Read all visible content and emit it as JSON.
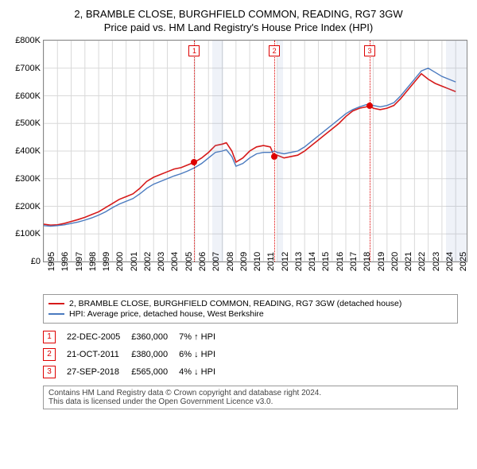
{
  "titles": {
    "line1": "2, BRAMBLE CLOSE, BURGHFIELD COMMON, READING, RG7 3GW",
    "line2": "Price paid vs. HM Land Registry's House Price Index (HPI)"
  },
  "chart": {
    "type": "line",
    "background_color": "#ffffff",
    "grid_color": "#d9d9d9",
    "border_color": "#888888",
    "xlim": [
      1995,
      2025.8
    ],
    "ylim": [
      0,
      800000
    ],
    "yticks": [
      0,
      100000,
      200000,
      300000,
      400000,
      500000,
      600000,
      700000,
      800000
    ],
    "ytick_labels": [
      "£0",
      "£100K",
      "£200K",
      "£300K",
      "£400K",
      "£500K",
      "£600K",
      "£700K",
      "£800K"
    ],
    "xticks": [
      1995,
      1996,
      1997,
      1998,
      1999,
      2000,
      2001,
      2002,
      2003,
      2004,
      2005,
      2006,
      2007,
      2008,
      2009,
      2010,
      2011,
      2012,
      2013,
      2014,
      2015,
      2016,
      2017,
      2018,
      2019,
      2020,
      2021,
      2022,
      2023,
      2024,
      2025
    ],
    "shaded_future": {
      "from_x": 2024.3,
      "color": "rgba(120,150,200,0.12)"
    },
    "shaded_bands": [
      {
        "from_x": 2007.3,
        "to_x": 2008.1,
        "color": "rgba(120,150,200,0.12)"
      },
      {
        "from_x": 2012.0,
        "to_x": 2012.4,
        "color": "rgba(120,150,200,0.12)"
      }
    ],
    "series": [
      {
        "name": "property",
        "label": "2, BRAMBLE CLOSE, BURGHFIELD COMMON, READING, RG7 3GW (detached house)",
        "color": "#d61a1a",
        "line_width": 1.6,
        "data": [
          [
            1995.0,
            135000
          ],
          [
            1995.5,
            132000
          ],
          [
            1996.0,
            133000
          ],
          [
            1996.5,
            138000
          ],
          [
            1997.0,
            145000
          ],
          [
            1997.5,
            152000
          ],
          [
            1998.0,
            160000
          ],
          [
            1998.5,
            170000
          ],
          [
            1999.0,
            180000
          ],
          [
            1999.5,
            195000
          ],
          [
            2000.0,
            210000
          ],
          [
            2000.5,
            225000
          ],
          [
            2001.0,
            235000
          ],
          [
            2001.5,
            245000
          ],
          [
            2002.0,
            265000
          ],
          [
            2002.5,
            290000
          ],
          [
            2003.0,
            305000
          ],
          [
            2003.5,
            315000
          ],
          [
            2004.0,
            325000
          ],
          [
            2004.5,
            335000
          ],
          [
            2005.0,
            340000
          ],
          [
            2005.5,
            350000
          ],
          [
            2006.0,
            360000
          ],
          [
            2006.5,
            375000
          ],
          [
            2007.0,
            395000
          ],
          [
            2007.5,
            420000
          ],
          [
            2008.0,
            425000
          ],
          [
            2008.3,
            430000
          ],
          [
            2008.7,
            400000
          ],
          [
            2009.0,
            360000
          ],
          [
            2009.5,
            375000
          ],
          [
            2010.0,
            400000
          ],
          [
            2010.5,
            415000
          ],
          [
            2011.0,
            420000
          ],
          [
            2011.5,
            415000
          ],
          [
            2011.8,
            380000
          ],
          [
            2012.0,
            385000
          ],
          [
            2012.5,
            375000
          ],
          [
            2013.0,
            380000
          ],
          [
            2013.5,
            385000
          ],
          [
            2014.0,
            400000
          ],
          [
            2014.5,
            420000
          ],
          [
            2015.0,
            440000
          ],
          [
            2015.5,
            460000
          ],
          [
            2016.0,
            480000
          ],
          [
            2016.5,
            500000
          ],
          [
            2017.0,
            525000
          ],
          [
            2017.5,
            545000
          ],
          [
            2018.0,
            555000
          ],
          [
            2018.5,
            560000
          ],
          [
            2018.7,
            565000
          ],
          [
            2019.0,
            555000
          ],
          [
            2019.5,
            550000
          ],
          [
            2020.0,
            555000
          ],
          [
            2020.5,
            565000
          ],
          [
            2021.0,
            590000
          ],
          [
            2021.5,
            620000
          ],
          [
            2022.0,
            650000
          ],
          [
            2022.5,
            680000
          ],
          [
            2023.0,
            660000
          ],
          [
            2023.5,
            645000
          ],
          [
            2024.0,
            635000
          ],
          [
            2024.5,
            625000
          ],
          [
            2025.0,
            615000
          ]
        ]
      },
      {
        "name": "hpi",
        "label": "HPI: Average price, detached house, West Berkshire",
        "color": "#4a7abf",
        "line_width": 1.4,
        "data": [
          [
            1995.0,
            130000
          ],
          [
            1995.5,
            128000
          ],
          [
            1996.0,
            130000
          ],
          [
            1996.5,
            133000
          ],
          [
            1997.0,
            138000
          ],
          [
            1997.5,
            143000
          ],
          [
            1998.0,
            150000
          ],
          [
            1998.5,
            158000
          ],
          [
            1999.0,
            168000
          ],
          [
            1999.5,
            180000
          ],
          [
            2000.0,
            195000
          ],
          [
            2000.5,
            208000
          ],
          [
            2001.0,
            218000
          ],
          [
            2001.5,
            228000
          ],
          [
            2002.0,
            245000
          ],
          [
            2002.5,
            265000
          ],
          [
            2003.0,
            280000
          ],
          [
            2003.5,
            290000
          ],
          [
            2004.0,
            300000
          ],
          [
            2004.5,
            310000
          ],
          [
            2005.0,
            318000
          ],
          [
            2005.5,
            328000
          ],
          [
            2006.0,
            340000
          ],
          [
            2006.5,
            355000
          ],
          [
            2007.0,
            375000
          ],
          [
            2007.5,
            395000
          ],
          [
            2008.0,
            400000
          ],
          [
            2008.3,
            405000
          ],
          [
            2008.7,
            380000
          ],
          [
            2009.0,
            345000
          ],
          [
            2009.5,
            355000
          ],
          [
            2010.0,
            375000
          ],
          [
            2010.5,
            390000
          ],
          [
            2011.0,
            395000
          ],
          [
            2011.5,
            395000
          ],
          [
            2011.8,
            400000
          ],
          [
            2012.0,
            395000
          ],
          [
            2012.5,
            390000
          ],
          [
            2013.0,
            395000
          ],
          [
            2013.5,
            400000
          ],
          [
            2014.0,
            415000
          ],
          [
            2014.5,
            435000
          ],
          [
            2015.0,
            455000
          ],
          [
            2015.5,
            475000
          ],
          [
            2016.0,
            495000
          ],
          [
            2016.5,
            515000
          ],
          [
            2017.0,
            535000
          ],
          [
            2017.5,
            550000
          ],
          [
            2018.0,
            560000
          ],
          [
            2018.5,
            568000
          ],
          [
            2019.0,
            565000
          ],
          [
            2019.5,
            560000
          ],
          [
            2020.0,
            565000
          ],
          [
            2020.5,
            575000
          ],
          [
            2021.0,
            600000
          ],
          [
            2021.5,
            630000
          ],
          [
            2022.0,
            660000
          ],
          [
            2022.5,
            690000
          ],
          [
            2023.0,
            700000
          ],
          [
            2023.5,
            685000
          ],
          [
            2024.0,
            670000
          ],
          [
            2024.5,
            660000
          ],
          [
            2025.0,
            650000
          ]
        ]
      }
    ],
    "markers": [
      {
        "id": 1,
        "label": "1",
        "x": 2005.97,
        "y": 360000
      },
      {
        "id": 2,
        "label": "2",
        "x": 2011.8,
        "y": 380000
      },
      {
        "id": 3,
        "label": "3",
        "x": 2018.74,
        "y": 565000
      }
    ]
  },
  "legend": {
    "rows": [
      {
        "color": "#d61a1a",
        "label_bind": "chart.series.0.label"
      },
      {
        "color": "#4a7abf",
        "label_bind": "chart.series.1.label"
      }
    ]
  },
  "sales": {
    "hpi_label": "HPI",
    "rows": [
      {
        "num": "1",
        "date": "22-DEC-2005",
        "price": "£360,000",
        "pct": "7%",
        "arrow": "↑"
      },
      {
        "num": "2",
        "date": "21-OCT-2011",
        "price": "£380,000",
        "pct": "6%",
        "arrow": "↓"
      },
      {
        "num": "3",
        "date": "27-SEP-2018",
        "price": "£565,000",
        "pct": "4%",
        "arrow": "↓"
      }
    ]
  },
  "attribution": {
    "line1": "Contains HM Land Registry data © Crown copyright and database right 2024.",
    "line2": "This data is licensed under the Open Government Licence v3.0."
  }
}
